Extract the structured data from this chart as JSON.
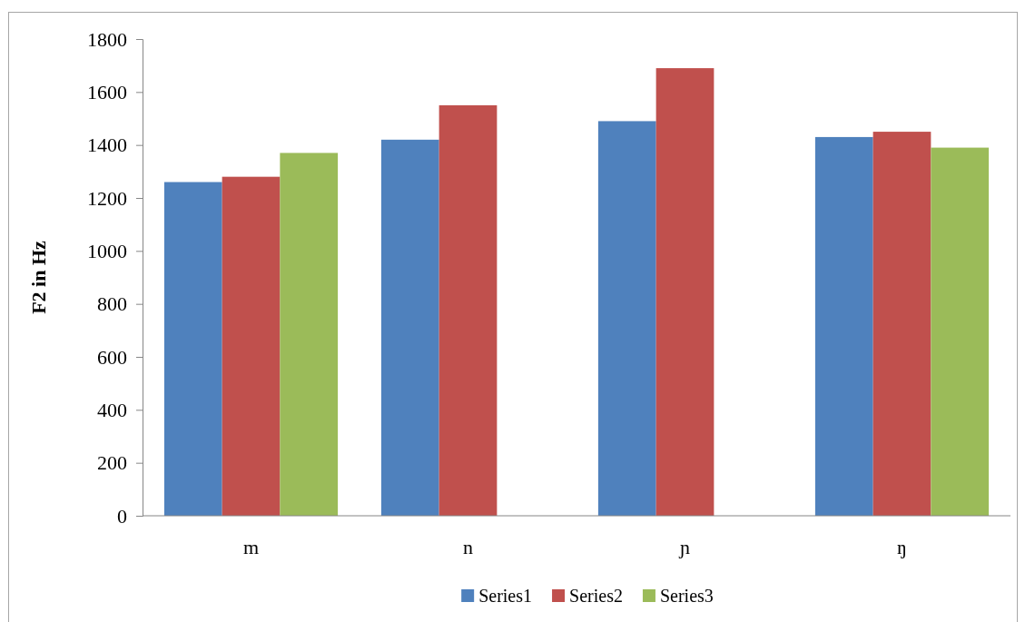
{
  "chart_data": {
    "type": "bar",
    "ylabel": "F2 in Hz",
    "categories": [
      "m",
      "n",
      "ɲ",
      "ŋ"
    ],
    "series": [
      {
        "name": "Series1",
        "color": "#4f81bd",
        "values": [
          1260,
          1420,
          1490,
          1430
        ]
      },
      {
        "name": "Series2",
        "color": "#c0504d",
        "values": [
          1280,
          1550,
          1690,
          1450
        ]
      },
      {
        "name": "Series3",
        "color": "#9bbb59",
        "values": [
          1370,
          null,
          null,
          1390
        ]
      }
    ],
    "ylim": [
      0,
      1800
    ],
    "yticks": [
      0,
      200,
      400,
      600,
      800,
      1000,
      1200,
      1400,
      1600,
      1800
    ],
    "legend": "bottom"
  }
}
